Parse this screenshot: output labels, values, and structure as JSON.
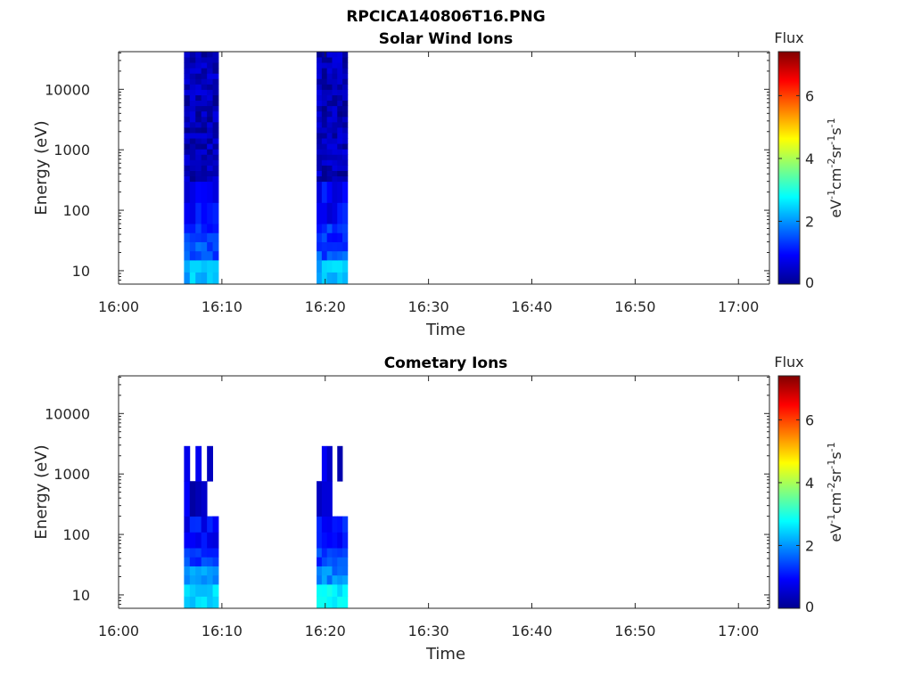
{
  "figure_title": "RPCICA140806T16.PNG",
  "chart_data": [
    {
      "type": "heatmap",
      "title": "Solar Wind Ions",
      "xlabel": "Time",
      "ylabel": "Energy (eV)",
      "yscale": "log",
      "x_range": [
        "16:00",
        "17:03"
      ],
      "y_range": [
        6,
        42000
      ],
      "x_ticks": [
        "16:00",
        "16:10",
        "16:20",
        "16:30",
        "16:40",
        "16:50",
        "17:00"
      ],
      "y_ticks": [
        "10",
        "100",
        "1000",
        "10000"
      ],
      "grid": false,
      "colorbar": {
        "title": "Flux",
        "label": "eV<sup>-1</sup>cm<sup>-2</sup>sr<sup>-1</sup>s<sup>-1</sup>",
        "label_parts": [
          "eV",
          "-1",
          "cm",
          "-2",
          "sr",
          "-1",
          "s",
          "-1"
        ],
        "range": [
          0,
          7.4
        ],
        "ticks": [
          "0",
          "2",
          "4",
          "6"
        ],
        "colormap": "jet"
      },
      "intervals": [
        {
          "start": "16:06:20",
          "end": "16:09:40",
          "columns": 6
        },
        {
          "start": "16:19:10",
          "end": "16:22:10",
          "columns": 6
        }
      ],
      "energy_bands": [
        {
          "e_low": 6,
          "e_high": 15,
          "flux": 2.3
        },
        {
          "e_low": 15,
          "e_high": 30,
          "flux": 1.5
        },
        {
          "e_low": 30,
          "e_high": 60,
          "flux": 1.2
        },
        {
          "e_low": 60,
          "e_high": 300,
          "flux": 0.9
        },
        {
          "e_low": 300,
          "e_high": 42000,
          "flux": 0.4
        }
      ]
    },
    {
      "type": "heatmap",
      "title": "Cometary Ions",
      "xlabel": "Time",
      "ylabel": "Energy (eV)",
      "yscale": "log",
      "x_range": [
        "16:00",
        "17:03"
      ],
      "y_range": [
        6,
        42000
      ],
      "x_ticks": [
        "16:00",
        "16:10",
        "16:20",
        "16:30",
        "16:40",
        "16:50",
        "17:00"
      ],
      "y_ticks": [
        "10",
        "100",
        "1000",
        "10000"
      ],
      "grid": false,
      "colorbar": {
        "title": "Flux",
        "label": "eV<sup>-1</sup>cm<sup>-2</sup>sr<sup>-1</sup>s<sup>-1</sup>",
        "label_parts": [
          "eV",
          "-1",
          "cm",
          "-2",
          "sr",
          "-1",
          "s",
          "-1"
        ],
        "range": [
          0,
          7.4
        ],
        "ticks": [
          "0",
          "2",
          "4",
          "6"
        ],
        "colormap": "jet"
      },
      "intervals": [
        {
          "start": "16:06:20",
          "end": "16:09:40",
          "columns": 6
        },
        {
          "start": "16:19:10",
          "end": "16:22:10",
          "columns": 6
        }
      ],
      "energy_bands": [
        {
          "e_low": 6,
          "e_high": 15,
          "flux": 2.6
        },
        {
          "e_low": 15,
          "e_high": 30,
          "flux": 1.9
        },
        {
          "e_low": 30,
          "e_high": 60,
          "flux": 1.4
        },
        {
          "e_low": 60,
          "e_high": 200,
          "flux": 1.0
        },
        {
          "e_low": 200,
          "e_high": 2900,
          "flux": 0.6,
          "sparse": true
        }
      ]
    }
  ]
}
